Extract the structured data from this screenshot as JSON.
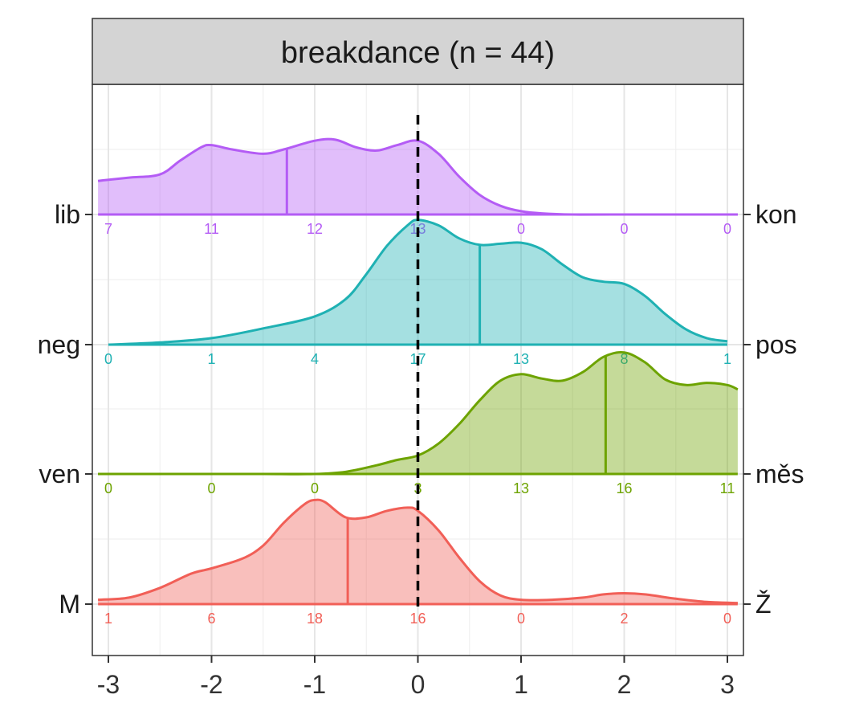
{
  "colors": {
    "M_Z": "#F15F57",
    "ven_mes": "#6DA300",
    "neg_pos": "#1FB1B3",
    "lib_kon": "#B45CF5"
  },
  "chart_data": {
    "type": "area",
    "title": "breakdance (n = 44)",
    "xlabel": "",
    "ylabel": "",
    "xlim": [
      -3.1,
      3.1
    ],
    "x_ticks": [
      "-3",
      "-2",
      "-1",
      "0",
      "1",
      "2",
      "3"
    ],
    "reference_line_x": 0,
    "grid": true,
    "series": [
      {
        "left_label": "M",
        "right_label": "Ž",
        "color_key": "M_Z",
        "counts": [
          "1",
          "6",
          "18",
          "16",
          "0",
          "2",
          "0"
        ],
        "mean": -0.68,
        "density_x": [
          -3.1,
          -2.8,
          -2.5,
          -2.2,
          -2.0,
          -1.7,
          -1.5,
          -1.3,
          -1.1,
          -1.0,
          -0.9,
          -0.7,
          -0.5,
          -0.3,
          -0.1,
          0.0,
          0.2,
          0.4,
          0.6,
          0.8,
          1.0,
          1.3,
          1.6,
          1.8,
          2.0,
          2.2,
          2.5,
          2.8,
          3.1
        ],
        "density_y": [
          0.04,
          0.06,
          0.15,
          0.28,
          0.33,
          0.42,
          0.54,
          0.75,
          0.92,
          0.96,
          0.94,
          0.8,
          0.8,
          0.86,
          0.89,
          0.86,
          0.68,
          0.43,
          0.21,
          0.08,
          0.04,
          0.04,
          0.06,
          0.09,
          0.1,
          0.09,
          0.05,
          0.02,
          0.01
        ]
      },
      {
        "left_label": "ven",
        "right_label": "měs",
        "color_key": "ven_mes",
        "counts": [
          "0",
          "0",
          "0",
          "3",
          "13",
          "16",
          "11"
        ],
        "mean": 1.82,
        "density_x": [
          -3.1,
          -2.5,
          -2.0,
          -1.5,
          -1.0,
          -0.7,
          -0.4,
          -0.2,
          0.0,
          0.2,
          0.4,
          0.6,
          0.8,
          1.0,
          1.2,
          1.4,
          1.6,
          1.8,
          2.0,
          2.2,
          2.4,
          2.6,
          2.8,
          3.0,
          3.1
        ],
        "density_y": [
          0.0,
          0.0,
          0.0,
          0.0,
          0.0,
          0.02,
          0.08,
          0.13,
          0.17,
          0.28,
          0.46,
          0.68,
          0.86,
          0.92,
          0.88,
          0.86,
          0.94,
          1.08,
          1.12,
          1.03,
          0.87,
          0.82,
          0.84,
          0.82,
          0.78
        ]
      },
      {
        "left_label": "neg",
        "right_label": "pos",
        "color_key": "neg_pos",
        "counts": [
          "0",
          "1",
          "4",
          "17",
          "13",
          "8",
          "1"
        ],
        "mean": 0.6,
        "density_x": [
          -3.0,
          -2.5,
          -2.0,
          -1.5,
          -1.0,
          -0.7,
          -0.5,
          -0.3,
          -0.1,
          0.0,
          0.2,
          0.4,
          0.6,
          0.8,
          1.0,
          1.2,
          1.4,
          1.6,
          1.8,
          2.0,
          2.2,
          2.4,
          2.6,
          2.8,
          3.0
        ],
        "density_y": [
          0.0,
          0.02,
          0.06,
          0.15,
          0.26,
          0.42,
          0.65,
          0.91,
          1.1,
          1.15,
          1.1,
          0.98,
          0.92,
          0.93,
          0.94,
          0.88,
          0.74,
          0.62,
          0.58,
          0.56,
          0.45,
          0.28,
          0.14,
          0.06,
          0.03
        ]
      },
      {
        "left_label": "lib",
        "right_label": "kon",
        "color_key": "lib_kon",
        "counts": [
          "7",
          "11",
          "12",
          "13",
          "0",
          "0",
          "0"
        ],
        "mean": -1.27,
        "density_x": [
          -3.1,
          -2.8,
          -2.5,
          -2.3,
          -2.1,
          -2.0,
          -1.8,
          -1.5,
          -1.3,
          -1.0,
          -0.8,
          -0.6,
          -0.4,
          -0.2,
          0.0,
          0.2,
          0.4,
          0.6,
          0.8,
          1.0,
          1.2,
          1.5,
          2.0,
          3.1
        ],
        "density_y": [
          0.31,
          0.34,
          0.37,
          0.5,
          0.62,
          0.64,
          0.6,
          0.56,
          0.6,
          0.68,
          0.69,
          0.62,
          0.59,
          0.64,
          0.68,
          0.56,
          0.35,
          0.18,
          0.08,
          0.03,
          0.01,
          0.0,
          0.0,
          0.0
        ]
      }
    ]
  }
}
